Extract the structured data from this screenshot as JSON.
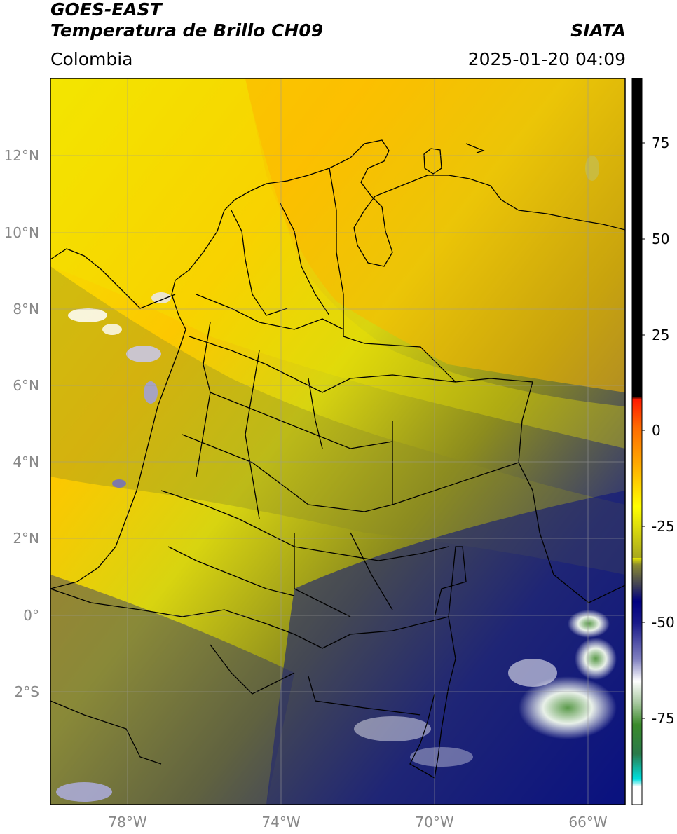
{
  "header": {
    "title_line1": "GOES-EAST",
    "title_line2": "Temperatura de Brillo CH09",
    "region": "Colombia",
    "agency": "SIATA",
    "datetime": "2025-01-20 04:09"
  },
  "map": {
    "lat_labels": [
      "12°N",
      "10°N",
      "8°N",
      "6°N",
      "4°N",
      "2°N",
      "0°",
      "2°S"
    ],
    "lon_labels": [
      "78°W",
      "74°W",
      "70°W",
      "66°W"
    ],
    "lat_values": [
      12,
      10,
      8,
      6,
      4,
      2,
      0,
      -2
    ],
    "lon_values": [
      -78,
      -74,
      -70,
      -66
    ],
    "extent": {
      "lon_min": -80,
      "lon_max": -65,
      "lat_min": -5,
      "lat_max": 14
    }
  },
  "colorbar": {
    "ticks": [
      "75",
      "50",
      "25",
      "0",
      "-25",
      "-50",
      "-75"
    ],
    "tick_values": [
      75,
      50,
      25,
      0,
      -25,
      -50,
      -75
    ],
    "range": [
      -97,
      92
    ],
    "colors": {
      "black": "#000000",
      "red": "#e00000",
      "orange": "#ffa500",
      "yellow": "#ffff00",
      "olive": "#8c8c1e",
      "navy": "#000080",
      "white": "#ffffff",
      "green": "#2e7d2e",
      "cyan": "#00e0e0"
    }
  }
}
